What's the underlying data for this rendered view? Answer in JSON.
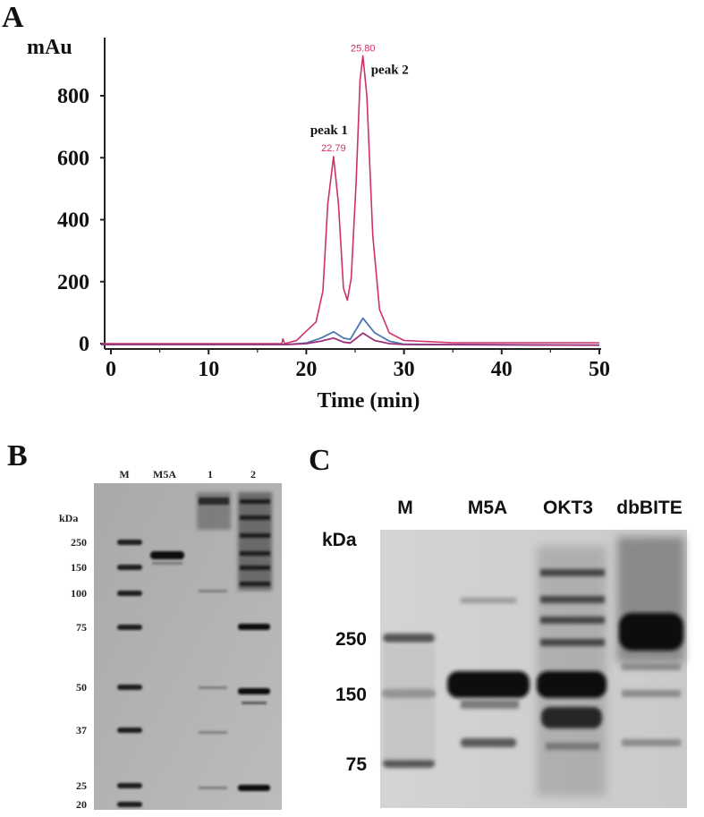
{
  "panel_labels": {
    "a": "A",
    "b": "B",
    "c": "C"
  },
  "chart_data": [
    {
      "type": "line",
      "panel": "A",
      "ylabel": "mAu",
      "xlabel": "Time (min)",
      "xlim": [
        0,
        50
      ],
      "ylim": [
        0,
        950
      ],
      "x_ticks": [
        0,
        10,
        20,
        30,
        40,
        50
      ],
      "y_ticks": [
        0,
        200,
        400,
        600,
        800
      ],
      "grid": false,
      "colors": {
        "pink": "#d0306a",
        "blue": "#4a78b0",
        "purple": "#a0307a"
      },
      "series": [
        {
          "points": [
            [
              -1,
              0
            ],
            [
              17.5,
              0
            ],
            [
              17.6,
              15
            ],
            [
              17.8,
              0
            ],
            [
              19,
              10
            ],
            [
              20,
              40
            ],
            [
              21,
              70
            ],
            [
              21.7,
              170
            ],
            [
              22.2,
              450
            ],
            [
              22.79,
              604
            ],
            [
              23.3,
              450
            ],
            [
              23.8,
              180
            ],
            [
              24.2,
              140
            ],
            [
              24.6,
              210
            ],
            [
              25.1,
              520
            ],
            [
              25.5,
              850
            ],
            [
              25.8,
              929
            ],
            [
              26.2,
              800
            ],
            [
              26.8,
              350
            ],
            [
              27.5,
              110
            ],
            [
              28.5,
              35
            ],
            [
              30,
              10
            ],
            [
              35,
              3
            ],
            [
              50,
              3
            ]
          ]
        },
        {
          "points": [
            [
              -1,
              -3
            ],
            [
              18,
              -3
            ],
            [
              20,
              2
            ],
            [
              21.5,
              18
            ],
            [
              22.79,
              38
            ],
            [
              23.8,
              18
            ],
            [
              24.5,
              14
            ],
            [
              25.8,
              82
            ],
            [
              27,
              35
            ],
            [
              28.5,
              8
            ],
            [
              30,
              -2
            ],
            [
              50,
              -5
            ]
          ]
        },
        {
          "points": [
            [
              -1,
              -3
            ],
            [
              18,
              -3
            ],
            [
              20,
              0
            ],
            [
              21.5,
              8
            ],
            [
              22.79,
              18
            ],
            [
              23.8,
              5
            ],
            [
              24.5,
              2
            ],
            [
              25.8,
              34
            ],
            [
              27,
              10
            ],
            [
              28.5,
              0
            ],
            [
              30,
              -3
            ],
            [
              50,
              -5
            ]
          ]
        }
      ],
      "annotations": [
        {
          "text": "peak 1",
          "x": 22.79
        },
        {
          "text": "22.79",
          "x": 22.79,
          "y": 604
        },
        {
          "text": "25.80",
          "x": 25.8,
          "y": 929
        },
        {
          "text": "peak 2",
          "x": 25.8
        }
      ]
    }
  ],
  "gel_b": {
    "kda_label": "kDa",
    "lanes": [
      "M",
      "M5A",
      "1",
      "2"
    ],
    "markers": [
      "250",
      "150",
      "100",
      "75",
      "50",
      "37",
      "25",
      "20"
    ]
  },
  "gel_c": {
    "kda_label": "kDa",
    "lanes": [
      "M",
      "M5A",
      "OKT3",
      "dbBITE"
    ],
    "markers": [
      "250",
      "150",
      "75"
    ]
  }
}
